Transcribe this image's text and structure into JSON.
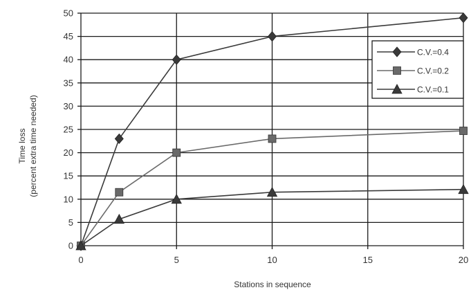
{
  "chart_data": {
    "type": "line",
    "xlabel": "Stations in sequence",
    "ylabel": [
      "Time loss",
      "(percent extra time needed)"
    ],
    "xlim": [
      0,
      20
    ],
    "ylim": [
      0,
      50
    ],
    "x_ticks": [
      0,
      5,
      10,
      15,
      20
    ],
    "y_ticks": [
      0,
      5,
      10,
      15,
      20,
      25,
      30,
      35,
      40,
      45,
      50
    ],
    "grid": true,
    "legend_position": "right",
    "series": [
      {
        "name": "C.V.=0.4",
        "marker": "diamond",
        "color": "#3a3a3a",
        "x": [
          0,
          2,
          5,
          10,
          20
        ],
        "y": [
          0,
          23,
          40,
          45,
          49
        ]
      },
      {
        "name": "C.V.=0.2",
        "marker": "square",
        "color": "#6a6a6a",
        "x": [
          0,
          2,
          5,
          10,
          20
        ],
        "y": [
          0,
          11.5,
          20,
          23,
          24.7
        ]
      },
      {
        "name": "C.V.=0.1",
        "marker": "triangle",
        "color": "#3a3a3a",
        "x": [
          0,
          2,
          5,
          10,
          20
        ],
        "y": [
          0,
          5.7,
          10,
          11.5,
          12.1
        ]
      }
    ]
  }
}
